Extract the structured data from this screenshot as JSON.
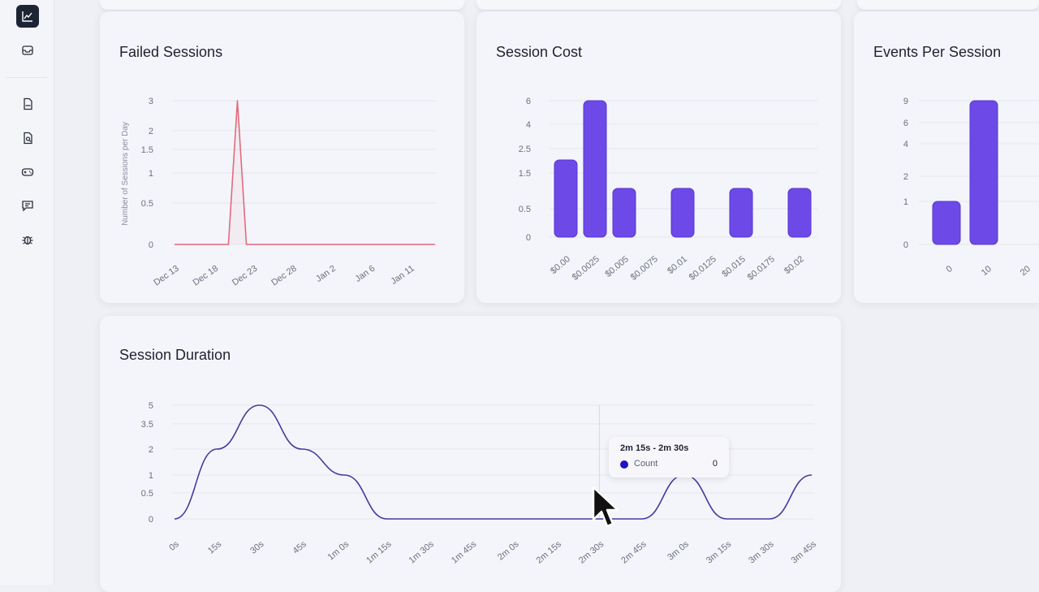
{
  "sidebar": {
    "items": [
      {
        "icon": "chart-line-icon",
        "active": true
      },
      {
        "icon": "inbox-icon",
        "active": false
      },
      {
        "icon": "document-code-icon",
        "active": false
      },
      {
        "icon": "document-search-icon",
        "active": false
      },
      {
        "icon": "gamepad-icon",
        "active": false
      },
      {
        "icon": "message-icon",
        "active": false
      },
      {
        "icon": "bug-icon",
        "active": false
      }
    ]
  },
  "colors": {
    "failed_line": "#e26a7d",
    "bar": "#6d4ae8",
    "bar_edge": "#5536cf",
    "duration_line": "#4a38a0",
    "tooltip_dot": "#1e12c8"
  },
  "cards": {
    "failed_sessions": {
      "title": "Failed Sessions",
      "chart_data": {
        "type": "line",
        "title": "Failed Sessions",
        "ylabel": "Number of Sessions per Day",
        "x_ticks": [
          "Dec 13",
          "Dec 18",
          "Dec 23",
          "Dec 28",
          "Jan 2",
          "Jan 6",
          "Jan 11"
        ],
        "y_ticks": [
          "0",
          "0.5",
          "1",
          "1.5",
          "2",
          "3"
        ],
        "series": [
          {
            "x": [
              "Dec 13",
              "Dec 14",
              "Dec 15",
              "Dec 16",
              "Dec 17",
              "Dec 18",
              "Dec 19",
              "Dec 20",
              "Dec 21",
              "Dec 22",
              "Dec 23",
              "Dec 24",
              "Dec 25",
              "Dec 26",
              "Dec 27",
              "Dec 28",
              "Dec 29",
              "Dec 30",
              "Dec 31",
              "Jan 1",
              "Jan 2",
              "Jan 3",
              "Jan 4",
              "Jan 5",
              "Jan 6",
              "Jan 7",
              "Jan 8",
              "Jan 9",
              "Jan 10",
              "Jan 11"
            ],
            "values": [
              0,
              0,
              0,
              0,
              0,
              0,
              0,
              3,
              0,
              0,
              0,
              0,
              0,
              0,
              0,
              0,
              0,
              0,
              0,
              0,
              0,
              0,
              0,
              0,
              0,
              0,
              0,
              0,
              0,
              0
            ]
          }
        ],
        "ylim": [
          0,
          3
        ]
      }
    },
    "session_cost": {
      "title": "Session Cost",
      "chart_data": {
        "type": "bar",
        "title": "Session Cost",
        "categories": [
          "$0.00",
          "$0.0025",
          "$0.005",
          "$0.0075",
          "$0.01",
          "$0.0125",
          "$0.015",
          "$0.0175",
          "$0.02"
        ],
        "values": [
          2,
          6,
          1,
          0,
          1,
          0,
          1,
          0,
          1
        ],
        "y_ticks": [
          "0",
          "0.5",
          "1.5",
          "2.5",
          "4",
          "6"
        ],
        "ylim": [
          0,
          6
        ]
      }
    },
    "events_per_session": {
      "title": "Events Per Session",
      "chart_data": {
        "type": "bar",
        "title": "Events Per Session",
        "categories": [
          "0",
          "10",
          "20"
        ],
        "values": [
          1,
          9,
          0
        ],
        "y_ticks": [
          "0",
          "1",
          "2",
          "4",
          "6",
          "9"
        ],
        "ylim": [
          0,
          9
        ]
      }
    },
    "session_duration": {
      "title": "Session Duration",
      "chart_data": {
        "type": "line",
        "title": "Session Duration",
        "x_ticks": [
          "0s",
          "15s",
          "30s",
          "45s",
          "1m 0s",
          "1m 15s",
          "1m 30s",
          "1m 45s",
          "2m 0s",
          "2m 15s",
          "2m 30s",
          "2m 45s",
          "3m 0s",
          "3m 15s",
          "3m 30s",
          "3m 45s"
        ],
        "y_ticks": [
          "0",
          "0.5",
          "1",
          "2",
          "3.5",
          "5"
        ],
        "series": [
          {
            "x": [
              "0s",
              "15s",
              "30s",
              "45s",
              "1m 0s",
              "1m 15s",
              "1m 30s",
              "1m 45s",
              "2m 0s",
              "2m 15s",
              "2m 30s",
              "2m 45s",
              "3m 0s",
              "3m 15s",
              "3m 30s",
              "3m 45s"
            ],
            "values": [
              0,
              2,
              5,
              2,
              1,
              0,
              0,
              0,
              0,
              0,
              0,
              0,
              1,
              0,
              0,
              1
            ]
          }
        ],
        "ylim": [
          0,
          5
        ]
      },
      "tooltip": {
        "title": "2m 15s - 2m 30s",
        "series_label": "Count",
        "value": "0"
      }
    }
  }
}
